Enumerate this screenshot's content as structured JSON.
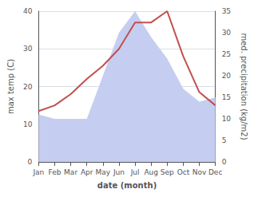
{
  "chart_data": {
    "type": "line",
    "categories": [
      "Jan",
      "Feb",
      "Mar",
      "Apr",
      "May",
      "Jun",
      "Jul",
      "Aug",
      "Sep",
      "Oct",
      "Nov",
      "Dec"
    ],
    "series": [
      {
        "type": "area",
        "color": "#c5cef0",
        "axis": "y2",
        "values": [
          11.0,
          10.0,
          10.0,
          10.0,
          20.0,
          30.0,
          35.0,
          29.0,
          24.0,
          17.0,
          14.0,
          15.0
        ]
      },
      {
        "type": "line",
        "color": "#c0504d",
        "axis": "y",
        "values": [
          13.5,
          15.0,
          18.0,
          22.0,
          25.5,
          30.0,
          37.0,
          37.0,
          40.0,
          28.0,
          18.5,
          15.0
        ]
      }
    ],
    "xlabel": "date (month)",
    "ylabel": "max temp (C)",
    "y2label": "med. precipitation (kg/m2)",
    "ylim": [
      0,
      40
    ],
    "yticks": [
      0,
      10,
      20,
      30,
      40
    ],
    "y2lim": [
      0,
      35
    ],
    "y2ticks": [
      0,
      5,
      10,
      15,
      20,
      25,
      30,
      35
    ],
    "grid": true
  }
}
